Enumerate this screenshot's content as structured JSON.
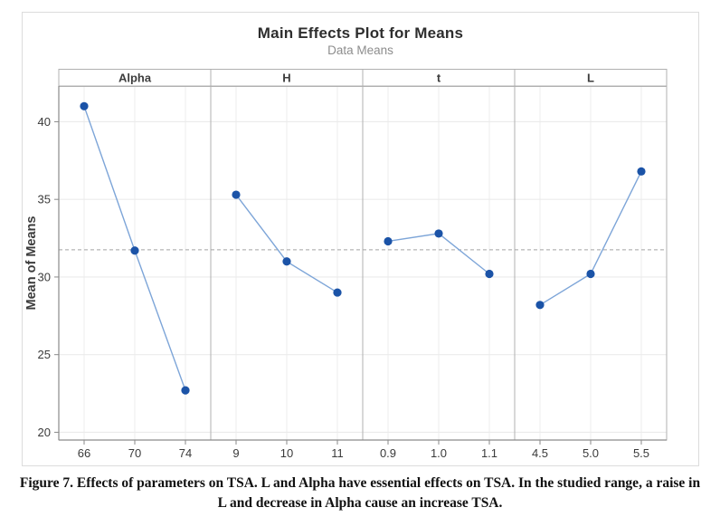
{
  "figure": {
    "title": "Main Effects Plot for Means",
    "subtitle": "Data Means",
    "ylabel": "Mean of Means"
  },
  "caption": {
    "text": "Figure 7. Effects of parameters on TSA. L and Alpha have essential effects on TSA. In the studied range, a raise in L and decrease in Alpha cause an increase TSA."
  },
  "chart_data": {
    "type": "line",
    "title": "Main Effects Plot for Means",
    "subtitle": "Data Means",
    "xlabel": "",
    "ylabel": "Mean of Means",
    "ylim": [
      19.5,
      42.3
    ],
    "yticks": [
      20,
      25,
      30,
      35,
      40
    ],
    "grid": true,
    "legend": "none",
    "reference_line": 31.75,
    "panels": [
      {
        "label": "Alpha",
        "categories": [
          "66",
          "70",
          "74"
        ],
        "values": [
          41.0,
          31.7,
          22.7
        ]
      },
      {
        "label": "H",
        "categories": [
          "9",
          "10",
          "11"
        ],
        "values": [
          35.3,
          31.0,
          29.0
        ]
      },
      {
        "label": "t",
        "categories": [
          "0.9",
          "1.0",
          "1.1"
        ],
        "values": [
          32.3,
          32.8,
          30.2
        ]
      },
      {
        "label": "L",
        "categories": [
          "4.5",
          "5.0",
          "5.5"
        ],
        "values": [
          28.2,
          30.2,
          36.8
        ]
      }
    ],
    "colors": {
      "marker": "#1b53a7",
      "line": "#7da5d8",
      "reference": "#a3a3a3",
      "grid_h": "#ebebeb",
      "grid_v": "#f2f2f2",
      "panel_border": "#b0b0b0",
      "axis": "#8a8a8a",
      "tick_text": "#3a3a3a",
      "panel_label": "#3d3d3d"
    }
  }
}
